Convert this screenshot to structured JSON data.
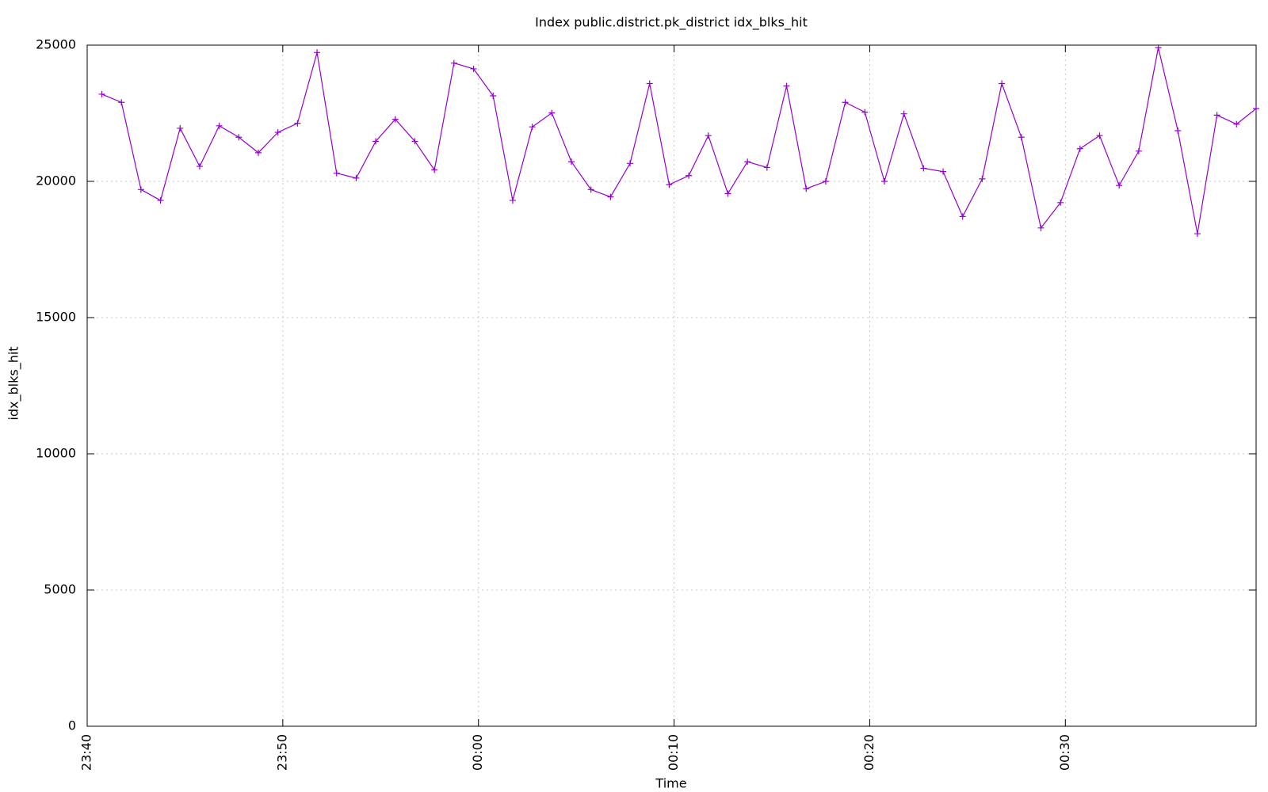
{
  "chart_data": {
    "type": "line",
    "title": "Index public.district.pk_district idx_blks_hit",
    "x_label": "Time",
    "y_label": "idx_blks_hit",
    "x": [
      0.75,
      1.75,
      2.75,
      3.75,
      4.75,
      5.75,
      6.75,
      7.75,
      8.75,
      9.75,
      10.75,
      11.75,
      12.75,
      13.75,
      14.75,
      15.75,
      16.75,
      17.75,
      18.75,
      19.75,
      20.75,
      21.75,
      22.75,
      23.75,
      24.75,
      25.75,
      26.75,
      27.75,
      28.75,
      29.75,
      30.75,
      31.75,
      32.75,
      33.75,
      34.75,
      35.75,
      36.75,
      37.75,
      38.75,
      39.75,
      40.75,
      41.75,
      42.75,
      43.75,
      44.75,
      45.75,
      46.75,
      47.75,
      48.75,
      49.75,
      50.75,
      51.75,
      52.75,
      53.75,
      54.75,
      55.75,
      56.75,
      57.75,
      58.75,
      59.75
    ],
    "values": [
      23200,
      22900,
      19700,
      19300,
      21950,
      20550,
      22040,
      21620,
      21050,
      21800,
      22130,
      24730,
      20300,
      20120,
      21470,
      22280,
      21470,
      20420,
      24340,
      24130,
      23140,
      19300,
      22000,
      22510,
      20720,
      19700,
      19430,
      20660,
      23590,
      19880,
      20210,
      21680,
      19550,
      20720,
      20510,
      23500,
      19730,
      20000,
      22900,
      22540,
      20000,
      22480,
      20480,
      20360,
      18710,
      20090,
      23590,
      21620,
      18290,
      19220,
      21200,
      21680,
      19850,
      21110,
      24910,
      21860,
      18080,
      22430,
      22100,
      22670
    ],
    "color": "#9400d3",
    "xlim": [
      0,
      59.75
    ],
    "xticks": [
      {
        "value": 0,
        "label": "23:40"
      },
      {
        "value": 10,
        "label": "23:50"
      },
      {
        "value": 20,
        "label": "00:00"
      },
      {
        "value": 30,
        "label": "00:10"
      },
      {
        "value": 40,
        "label": "00:20"
      },
      {
        "value": 50,
        "label": "00:30"
      }
    ],
    "ylim": [
      0,
      25000
    ],
    "yticks": [
      0,
      5000,
      10000,
      15000,
      20000,
      25000
    ],
    "grid": true
  }
}
